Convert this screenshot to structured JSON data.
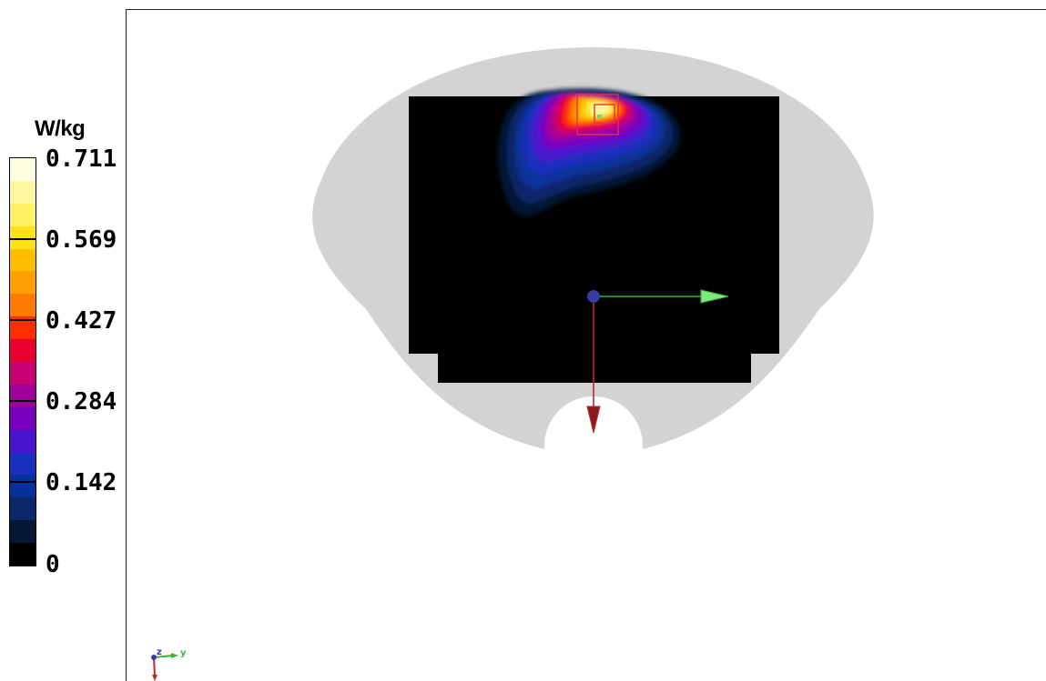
{
  "colorbar": {
    "unit": "W/kg",
    "ticks": [
      "0.711",
      "0.569",
      "0.427",
      "0.284",
      "0.142",
      "0"
    ],
    "colors": [
      "#ffffe2",
      "#fff7a0",
      "#fff066",
      "#ffe21c",
      "#ffbe00",
      "#ff9f00",
      "#ff7a00",
      "#ff3000",
      "#ea0030",
      "#c80073",
      "#a0009c",
      "#7a00c0",
      "#4815cc",
      "#1a2fbd",
      "#08309a",
      "#0a2868",
      "#041833",
      "#000000"
    ]
  },
  "scene": {
    "phantom_color": "#d3d3d3",
    "grid_color": "#000000",
    "hotspot_marker_color": "#e0344a",
    "y_axis_color": "#5fe05f",
    "z_axis_color": "#c0282d",
    "origin_color": "#3a3aa0"
  },
  "mini_axes": {
    "y_label": "y",
    "z_label": "z"
  }
}
